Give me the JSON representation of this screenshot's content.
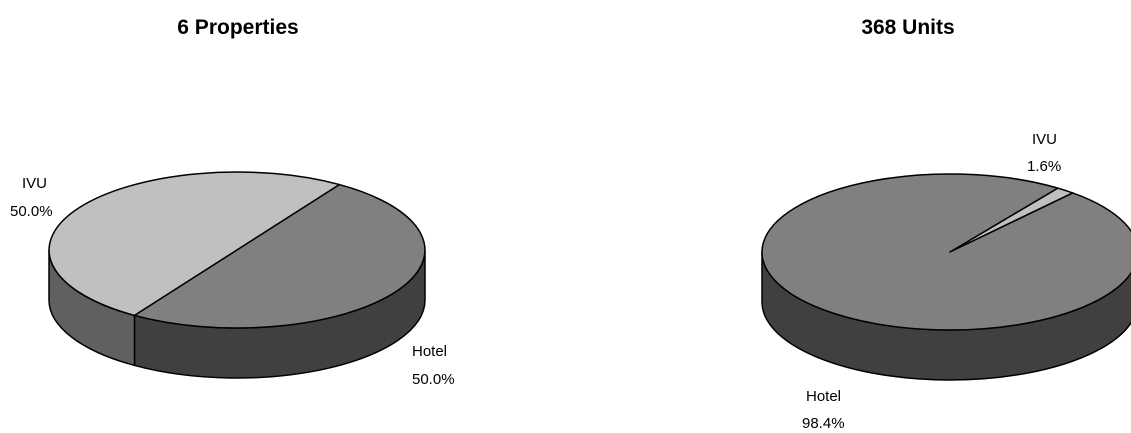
{
  "chart_data": [
    {
      "type": "pie",
      "title": "6 Properties",
      "categories": [
        "IVU",
        "Hotel"
      ],
      "values": [
        50.0,
        50.0
      ],
      "value_labels": [
        "50.0%",
        "50.0%"
      ],
      "colors": {
        "IVU": "#c0c0c0",
        "Hotel": "#808080",
        "side_light": "#606060",
        "side_dark": "#404040"
      },
      "style": "3d-pie",
      "legend": "none"
    },
    {
      "type": "pie",
      "title": "368 Units",
      "categories": [
        "IVU",
        "Hotel"
      ],
      "values": [
        1.6,
        98.4
      ],
      "value_labels": [
        "1.6%",
        "98.4%"
      ],
      "colors": {
        "IVU": "#c0c0c0",
        "Hotel": "#808080",
        "side_light": "#606060",
        "side_dark": "#404040"
      },
      "style": "3d-pie",
      "legend": "none"
    }
  ]
}
